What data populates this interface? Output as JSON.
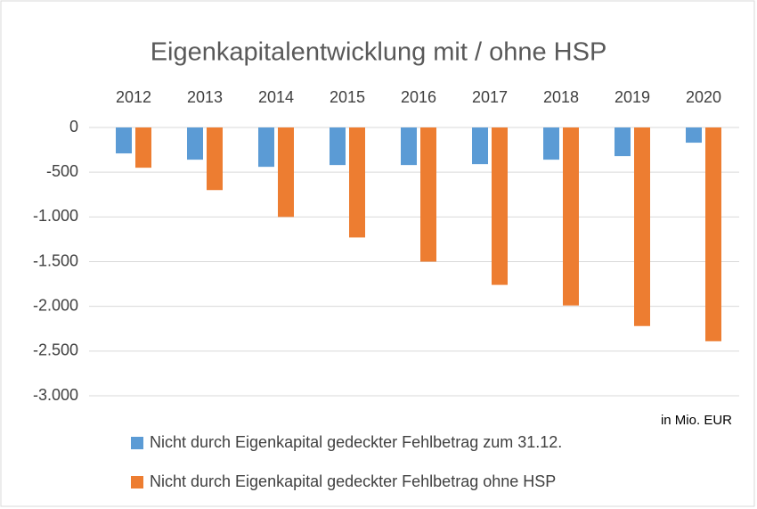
{
  "chart_data": {
    "type": "bar",
    "title": "Eigenkapitalentwicklung mit / ohne HSP",
    "annotation": "in Mio. EUR",
    "categories": [
      "2012",
      "2013",
      "2014",
      "2015",
      "2016",
      "2017",
      "2018",
      "2019",
      "2020"
    ],
    "series": [
      {
        "name": "Nicht durch Eigenkapital gedeckter Fehlbetrag zum 31.12.",
        "color": "#5b9bd5",
        "values": [
          -290,
          -360,
          -440,
          -420,
          -420,
          -410,
          -360,
          -320,
          -170
        ]
      },
      {
        "name": "Nicht durch Eigenkapital gedeckter Fehlbetrag ohne HSP",
        "color": "#ed7d31",
        "values": [
          -450,
          -700,
          -1000,
          -1230,
          -1500,
          -1760,
          -1990,
          -2220,
          -2390
        ]
      }
    ],
    "ylim": [
      -3000,
      0
    ],
    "yticks": [
      0,
      -500,
      {
        "value": -1000,
        "label": "-1.000"
      },
      {
        "value": -1500,
        "label": "-1.500"
      },
      {
        "value": -2000,
        "label": "-2.000"
      },
      {
        "value": -2500,
        "label": "-2.500"
      },
      {
        "value": -3000,
        "label": "-3.000"
      }
    ],
    "grid": true,
    "legend": "bottom"
  }
}
